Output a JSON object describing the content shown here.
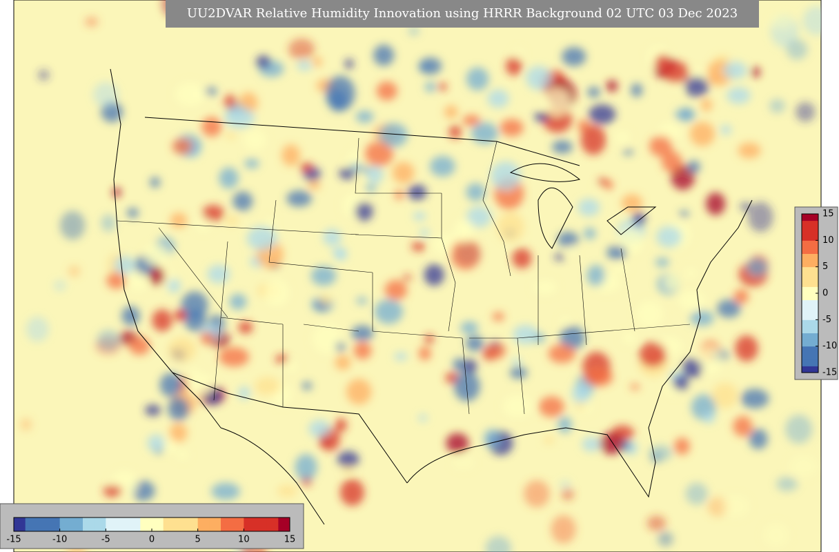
{
  "title": "UU2DVAR Relative Humidity Innovation using HRRR Background 02 UTC 03 Dec 2023",
  "colorbars": [
    {
      "orientation": "vertical",
      "range": [
        -15,
        15
      ],
      "ticks": [
        15,
        10,
        5,
        0,
        -5,
        -10,
        -15
      ]
    },
    {
      "orientation": "horizontal",
      "range": [
        -15,
        15
      ],
      "ticks": [
        -15,
        -10,
        -5,
        0,
        5,
        10,
        15
      ]
    }
  ],
  "colormap": [
    "#313695",
    "#4575b4",
    "#74add1",
    "#abd9e9",
    "#e0f3f8",
    "#ffffbf",
    "#fee090",
    "#fdae61",
    "#f46d43",
    "#d73027",
    "#a50026"
  ]
}
